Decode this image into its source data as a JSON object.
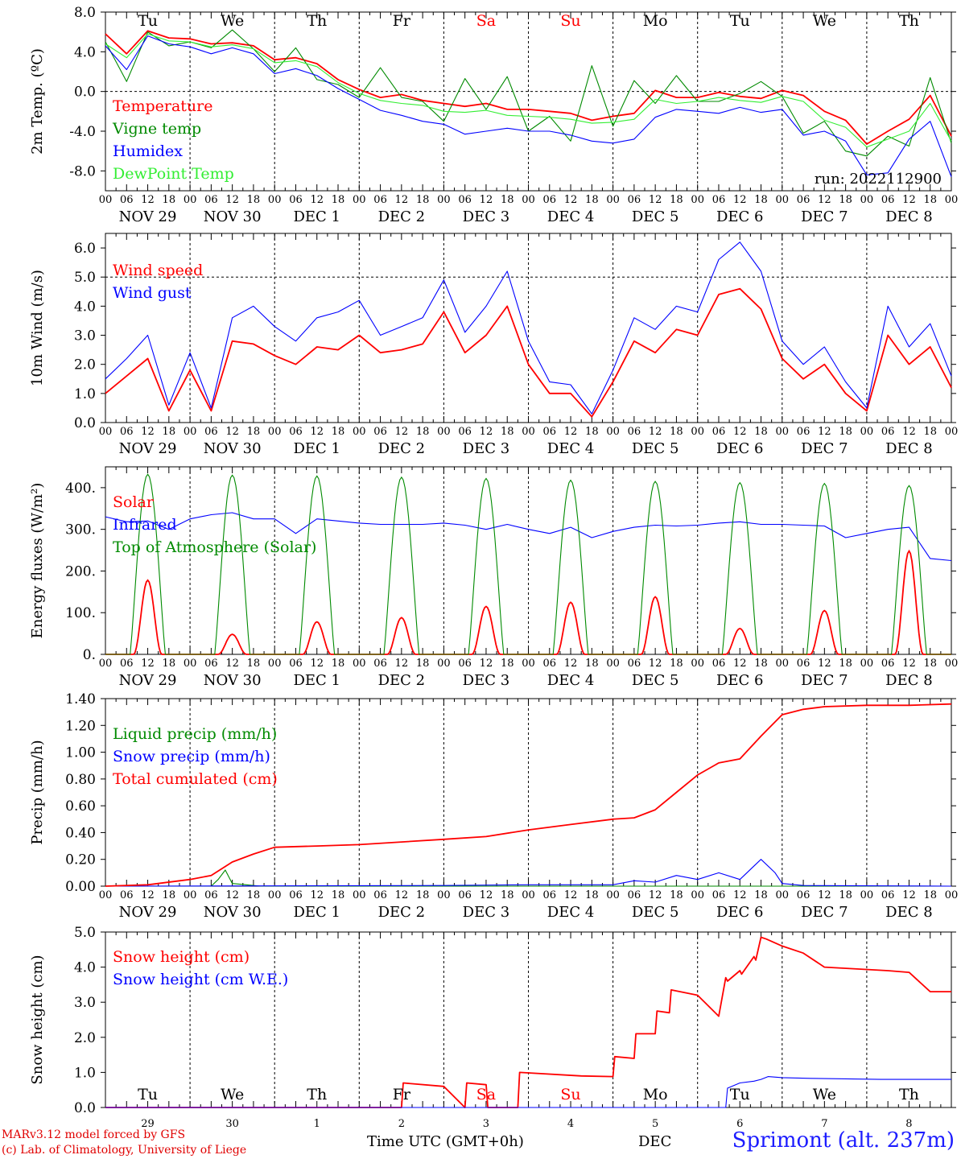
{
  "colors": {
    "red": "#ff0000",
    "green": "#008a00",
    "blue": "#0000ff",
    "lightgreen": "#33ee33",
    "station": "#1c1cff"
  },
  "run_label": "run: 2022112900",
  "days": [
    {
      "dow": "Tu",
      "date": "NOV 29",
      "short": "29",
      "weekend": false
    },
    {
      "dow": "We",
      "date": "NOV 30",
      "short": "30",
      "weekend": false
    },
    {
      "dow": "Th",
      "date": "DEC  1",
      "short": "1",
      "weekend": false
    },
    {
      "dow": "Fr",
      "date": "DEC  2",
      "short": "2",
      "weekend": false
    },
    {
      "dow": "Sa",
      "date": "DEC  3",
      "short": "3",
      "weekend": true
    },
    {
      "dow": "Su",
      "date": "DEC  4",
      "short": "4",
      "weekend": true
    },
    {
      "dow": "Mo",
      "date": "DEC  5",
      "short": "5",
      "weekend": false
    },
    {
      "dow": "Tu",
      "date": "DEC  6",
      "short": "6",
      "weekend": false
    },
    {
      "dow": "We",
      "date": "DEC  7",
      "short": "7",
      "weekend": false
    },
    {
      "dow": "Th",
      "date": "DEC  8",
      "short": "8",
      "weekend": false
    }
  ],
  "hour_ticks": [
    "00",
    "06",
    "12",
    "18"
  ],
  "final_hour_tick": "00",
  "chart_data": [
    {
      "type": "line",
      "ylabel": "2m Temp. (ºC)",
      "ylim": [
        -10,
        8
      ],
      "yticks": [
        "8.0",
        "4.0",
        "0.0",
        "-4.0",
        "-8.0"
      ],
      "hline": 0,
      "series": [
        {
          "name": "Temperature",
          "color": "red",
          "x": [
            0,
            6,
            12,
            18,
            24,
            30,
            36,
            42,
            48,
            54,
            60,
            66,
            72,
            78,
            84,
            90,
            96,
            102,
            108,
            114,
            120,
            126,
            132,
            138,
            144,
            150,
            156,
            162,
            168,
            174,
            180,
            186,
            192,
            198,
            204,
            210,
            216,
            222,
            228,
            234,
            240
          ],
          "values": [
            5.8,
            3.8,
            6.1,
            5.4,
            5.3,
            4.8,
            4.9,
            4.6,
            3.2,
            3.4,
            2.8,
            1.2,
            0.2,
            -0.6,
            -0.3,
            -0.9,
            -1.2,
            -1.5,
            -1.2,
            -1.8,
            -1.8,
            -2.0,
            -2.2,
            -2.9,
            -2.5,
            -2.2,
            0.1,
            -0.6,
            -0.6,
            -0.1,
            -0.5,
            -0.7,
            0.1,
            -0.4,
            -2.0,
            -2.9,
            -5.3,
            -4.0,
            -2.8,
            -0.4,
            -4.5
          ]
        },
        {
          "name": "Vigne temp",
          "color": "green",
          "x": [
            0,
            6,
            12,
            18,
            24,
            30,
            36,
            42,
            48,
            54,
            60,
            66,
            72,
            78,
            84,
            90,
            96,
            102,
            108,
            114,
            120,
            126,
            132,
            138,
            144,
            150,
            156,
            162,
            168,
            174,
            180,
            186,
            192,
            198,
            204,
            210,
            216,
            222,
            228,
            234,
            240
          ],
          "values": [
            5.0,
            1.0,
            6.0,
            4.6,
            5.0,
            4.4,
            6.2,
            4.3,
            2.0,
            4.4,
            1.2,
            0.7,
            -0.6,
            2.4,
            -0.6,
            -1.0,
            -3.0,
            1.3,
            -1.8,
            1.5,
            -4.0,
            -2.5,
            -5.0,
            2.6,
            -3.5,
            1.1,
            -1.2,
            1.6,
            -1.0,
            -1.0,
            -0.2,
            1.0,
            -0.5,
            -4.2,
            -3.0,
            -6.0,
            -6.5,
            -4.5,
            -5.5,
            1.4,
            -5.2
          ]
        },
        {
          "name": "Humidex",
          "color": "blue",
          "x": [
            0,
            6,
            12,
            18,
            24,
            30,
            36,
            42,
            48,
            54,
            60,
            66,
            72,
            78,
            84,
            90,
            96,
            102,
            108,
            114,
            120,
            126,
            132,
            138,
            144,
            150,
            156,
            162,
            168,
            174,
            180,
            186,
            192,
            198,
            204,
            210,
            216,
            222,
            228,
            234,
            240
          ],
          "values": [
            4.6,
            2.2,
            5.6,
            4.8,
            4.5,
            3.8,
            4.4,
            3.8,
            1.8,
            2.3,
            1.6,
            0.3,
            -0.8,
            -1.9,
            -2.4,
            -3.0,
            -3.3,
            -4.3,
            -4.0,
            -3.7,
            -4.0,
            -4.0,
            -4.4,
            -5.0,
            -5.2,
            -4.8,
            -2.6,
            -1.8,
            -2.0,
            -2.2,
            -1.6,
            -2.1,
            -1.8,
            -4.4,
            -4.0,
            -5.0,
            -8.4,
            -8.2,
            -4.8,
            -3.0,
            -8.6
          ]
        },
        {
          "name": "DewPoint Temp",
          "color": "lightgreen",
          "x": [
            0,
            6,
            12,
            18,
            24,
            30,
            36,
            42,
            48,
            54,
            60,
            66,
            72,
            78,
            84,
            90,
            96,
            102,
            108,
            114,
            120,
            126,
            132,
            138,
            144,
            150,
            156,
            162,
            168,
            174,
            180,
            186,
            192,
            198,
            204,
            210,
            216,
            222,
            228,
            234,
            240
          ],
          "values": [
            4.8,
            3.4,
            5.8,
            5.1,
            5.0,
            4.5,
            4.7,
            4.3,
            2.9,
            3.1,
            2.5,
            0.9,
            -0.2,
            -0.9,
            -1.2,
            -1.4,
            -2.0,
            -2.1,
            -1.9,
            -2.4,
            -2.5,
            -2.6,
            -2.8,
            -3.2,
            -3.1,
            -2.8,
            -0.8,
            -1.2,
            -1.0,
            -0.6,
            -0.9,
            -1.1,
            -0.5,
            -1.0,
            -2.9,
            -3.6,
            -5.6,
            -4.8,
            -4.0,
            -1.2,
            -5.0
          ]
        }
      ]
    },
    {
      "type": "line",
      "ylabel": "10m Wind (m/s)",
      "ylim": [
        0,
        6.5
      ],
      "yticks": [
        "6.0",
        "5.0",
        "4.0",
        "3.0",
        "2.0",
        "1.0",
        "0.0"
      ],
      "hline": 5,
      "series": [
        {
          "name": "Wind speed",
          "color": "red",
          "x": [
            0,
            6,
            12,
            18,
            24,
            30,
            36,
            42,
            48,
            54,
            60,
            66,
            72,
            78,
            84,
            90,
            96,
            102,
            108,
            114,
            120,
            126,
            132,
            138,
            144,
            150,
            156,
            162,
            168,
            174,
            180,
            186,
            192,
            198,
            204,
            210,
            216,
            222,
            228,
            234,
            240
          ],
          "values": [
            1.0,
            1.6,
            2.2,
            0.4,
            1.8,
            0.4,
            2.8,
            2.7,
            2.3,
            2.0,
            2.6,
            2.5,
            3.0,
            2.4,
            2.5,
            2.7,
            3.8,
            2.4,
            3.0,
            4.0,
            2.0,
            1.0,
            1.0,
            0.2,
            1.4,
            2.8,
            2.4,
            3.2,
            3.0,
            4.4,
            4.6,
            3.9,
            2.2,
            1.5,
            2.0,
            1.0,
            0.4,
            3.0,
            2.0,
            2.6,
            1.2
          ]
        },
        {
          "name": "Wind gust",
          "color": "blue",
          "x": [
            0,
            6,
            12,
            18,
            24,
            30,
            36,
            42,
            48,
            54,
            60,
            66,
            72,
            78,
            84,
            90,
            96,
            102,
            108,
            114,
            120,
            126,
            132,
            138,
            144,
            150,
            156,
            162,
            168,
            174,
            180,
            186,
            192,
            198,
            204,
            210,
            216,
            222,
            228,
            234,
            240
          ],
          "values": [
            1.5,
            2.2,
            3.0,
            0.6,
            2.4,
            0.5,
            3.6,
            4.0,
            3.3,
            2.8,
            3.6,
            3.8,
            4.2,
            3.0,
            3.3,
            3.6,
            4.9,
            3.1,
            4.0,
            5.2,
            2.8,
            1.4,
            1.3,
            0.3,
            1.8,
            3.6,
            3.2,
            4.0,
            3.8,
            5.6,
            6.2,
            5.2,
            2.8,
            2.0,
            2.6,
            1.4,
            0.5,
            4.0,
            2.6,
            3.4,
            1.6
          ]
        }
      ]
    },
    {
      "type": "line",
      "ylabel": "Energy fluxes (W/m²)",
      "ylim": [
        0,
        450
      ],
      "yticks": [
        "400.",
        "300.",
        "200.",
        "100.",
        "0."
      ],
      "series": [
        {
          "name": "Solar",
          "color": "red",
          "peak_hour": 12,
          "daily_peaks": [
            178,
            48,
            78,
            88,
            115,
            125,
            138,
            62,
            105,
            248
          ]
        },
        {
          "name": "Infrared",
          "color": "blue",
          "x": [
            0,
            6,
            12,
            18,
            24,
            30,
            36,
            42,
            48,
            54,
            60,
            66,
            72,
            78,
            84,
            90,
            96,
            102,
            108,
            114,
            120,
            126,
            132,
            138,
            144,
            150,
            156,
            162,
            168,
            174,
            180,
            186,
            192,
            198,
            204,
            210,
            216,
            222,
            228,
            234,
            240
          ],
          "values": [
            330,
            318,
            320,
            300,
            325,
            335,
            340,
            325,
            325,
            290,
            325,
            320,
            315,
            312,
            312,
            312,
            315,
            310,
            300,
            312,
            300,
            290,
            305,
            280,
            295,
            305,
            310,
            308,
            310,
            315,
            318,
            312,
            312,
            310,
            308,
            280,
            290,
            300,
            305,
            230,
            225
          ]
        },
        {
          "name": "Top of Atmosphere (Solar)",
          "color": "green",
          "peak_hour": 12,
          "daily_peaks": [
            432,
            430,
            428,
            425,
            422,
            418,
            415,
            412,
            410,
            405
          ]
        }
      ]
    },
    {
      "type": "line",
      "ylabel": "Precip (mm/h)",
      "ylim": [
        0,
        1.4
      ],
      "yticks": [
        "1.40",
        "1.20",
        "1.00",
        "0.80",
        "0.60",
        "0.40",
        "0.20",
        "0.00"
      ],
      "series": [
        {
          "name": "Liquid precip (mm/h)",
          "color": "green",
          "x": [
            0,
            30,
            32,
            34,
            36,
            40,
            44,
            240
          ],
          "values": [
            0,
            0,
            0.05,
            0.12,
            0.02,
            0.01,
            0,
            0
          ]
        },
        {
          "name": "Snow precip (mm/h)",
          "color": "blue",
          "x": [
            0,
            96,
            120,
            144,
            150,
            156,
            162,
            168,
            174,
            180,
            186,
            190,
            192,
            198,
            240
          ],
          "values": [
            0,
            0.005,
            0.01,
            0.01,
            0.04,
            0.03,
            0.08,
            0.05,
            0.1,
            0.05,
            0.2,
            0.1,
            0.02,
            0.005,
            0
          ]
        },
        {
          "name": "Total cumulated (cm)",
          "color": "red",
          "x": [
            0,
            12,
            24,
            30,
            36,
            42,
            48,
            60,
            72,
            84,
            96,
            108,
            120,
            132,
            144,
            150,
            156,
            162,
            168,
            174,
            180,
            186,
            192,
            198,
            204,
            216,
            228,
            240
          ],
          "values": [
            0,
            0.01,
            0.05,
            0.08,
            0.18,
            0.24,
            0.29,
            0.3,
            0.31,
            0.33,
            0.35,
            0.37,
            0.42,
            0.46,
            0.5,
            0.51,
            0.57,
            0.7,
            0.83,
            0.92,
            0.95,
            1.12,
            1.28,
            1.32,
            1.34,
            1.35,
            1.35,
            1.36
          ]
        }
      ]
    },
    {
      "type": "line",
      "ylabel": "Snow height (cm)",
      "ylim": [
        0,
        5
      ],
      "yticks": [
        "5.0",
        "4.0",
        "3.0",
        "2.0",
        "1.0",
        "0.0"
      ],
      "series": [
        {
          "name": "Snow height (cm)",
          "color": "red",
          "x": [
            0,
            84,
            84.5,
            96,
            102,
            102.5,
            108,
            108.5,
            117,
            117.5,
            135,
            144,
            144.5,
            150,
            150.5,
            156,
            156.5,
            160,
            160.5,
            168,
            174,
            176,
            176.5,
            180,
            180.5,
            184,
            184.5,
            186,
            187.5,
            192,
            198,
            204,
            222,
            228,
            234,
            240
          ],
          "values": [
            0,
            0,
            0.7,
            0.6,
            0,
            0.7,
            0.65,
            0,
            0,
            1.0,
            0.9,
            0.88,
            1.45,
            1.4,
            2.1,
            2.1,
            2.75,
            2.7,
            3.35,
            3.2,
            2.6,
            3.7,
            3.6,
            3.9,
            3.8,
            4.3,
            4.2,
            4.85,
            4.8,
            4.6,
            4.4,
            4.0,
            3.9,
            3.85,
            3.3,
            3.3
          ]
        },
        {
          "name": "Snow height (cm W.E.)",
          "color": "blue",
          "x": [
            0,
            176,
            176.5,
            180,
            184,
            186,
            188,
            192,
            200,
            220,
            240
          ],
          "values": [
            0,
            0,
            0.55,
            0.7,
            0.75,
            0.8,
            0.88,
            0.85,
            0.83,
            0.8,
            0.8
          ]
        }
      ]
    }
  ],
  "footer": {
    "credit_line1": "MARv3.12 model forced by GFS",
    "credit_line2": "(c) Lab. of Climatology, University of Liege",
    "time_axis_label": "Time UTC (GMT+0h)",
    "month_label": "DEC",
    "station": "Sprimont (alt. 237m)"
  }
}
